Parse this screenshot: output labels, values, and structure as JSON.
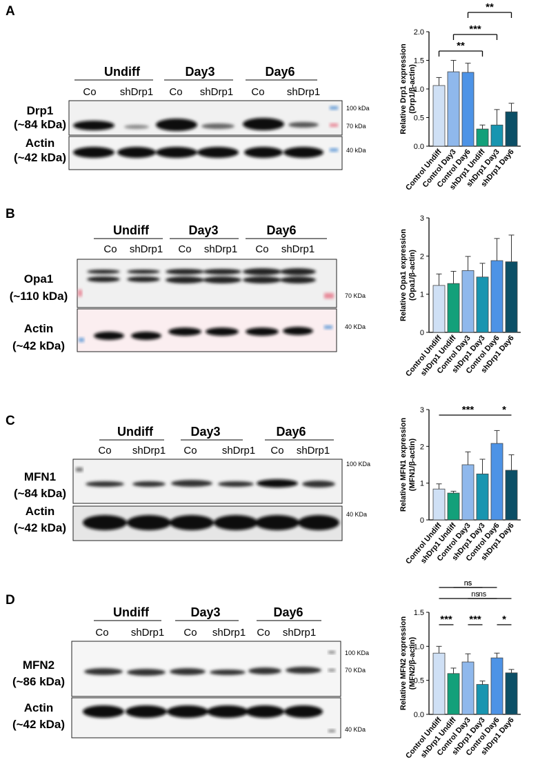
{
  "panels": [
    {
      "letter": "A",
      "groups": [
        "Undiff",
        "Day3",
        "Day6"
      ],
      "lanes": [
        "Co",
        "shDrp1",
        "Co",
        "shDrp1",
        "Co",
        "shDrp1"
      ],
      "blots": [
        {
          "name": "Drp1",
          "size": "(~84 kDa)"
        },
        {
          "name": "Actin",
          "size": "(~42 kDa)"
        }
      ],
      "markers": [
        "100 kDa",
        "70 kDa",
        "40 kDa"
      ],
      "marker_colors": [
        "#6fa3d9",
        "#e88a9a",
        "#6fa3d9"
      ]
    },
    {
      "letter": "B",
      "groups": [
        "Undiff",
        "Day3",
        "Day6"
      ],
      "lanes": [
        "Co",
        "shDrp1",
        "Co",
        "shDrp1",
        "Co",
        "shDrp1"
      ],
      "blots": [
        {
          "name": "Opa1",
          "size": "(~110 kDa)"
        },
        {
          "name": "Actin",
          "size": "(~42 kDa)"
        }
      ],
      "markers": [
        "70 KDa",
        "40 KDa"
      ],
      "marker_colors": [
        "#e88a9a",
        "#6fa3d9"
      ]
    },
    {
      "letter": "C",
      "groups": [
        "Undiff",
        "Day3",
        "Day6"
      ],
      "lanes": [
        "Co",
        "shDrp1",
        "Co",
        "shDrp1",
        "Co",
        "shDrp1"
      ],
      "blots": [
        {
          "name": "MFN1",
          "size": "(~84 kDa)"
        },
        {
          "name": "Actin",
          "size": "(~42 kDa)"
        }
      ],
      "markers": [
        "100 KDa",
        "40 KDa"
      ]
    },
    {
      "letter": "D",
      "groups": [
        "Undiff",
        "Day3",
        "Day6"
      ],
      "lanes": [
        "Co",
        "shDrp1",
        "Co",
        "shDrp1",
        "Co",
        "shDrp1"
      ],
      "blots": [
        {
          "name": "MFN2",
          "size": "(~86 kDa)"
        },
        {
          "name": "Actin",
          "size": "(~42 kDa)"
        }
      ],
      "markers": [
        "100 KDa",
        "70 KDa",
        "40 KDa"
      ]
    }
  ],
  "colors": {
    "control_undiff": "#cfe0f5",
    "control_day3": "#8fb8ec",
    "control_day6": "#4d93e6",
    "sh_undiff": "#13a07a",
    "sh_day3": "#1895b0",
    "sh_day6": "#0c4f66"
  },
  "chart_data": [
    {
      "type": "bar",
      "panel": "A",
      "ylabel": "Relative Drp1 expression (Drp1/β-actin)",
      "categories": [
        "Control Undiff",
        "Control Day3",
        "Control Day6",
        "shDrp1 Undiff",
        "shDrp1 Day3",
        "shDrp1 Day6"
      ],
      "values": [
        1.06,
        1.3,
        1.29,
        0.3,
        0.37,
        0.6
      ],
      "errors": [
        0.14,
        0.2,
        0.16,
        0.07,
        0.27,
        0.15
      ],
      "ylim": [
        0,
        2.0
      ],
      "yticks": [
        "0.0",
        "0.5",
        "1.0",
        "1.5",
        "2.0"
      ],
      "colors": [
        "#cfe0f5",
        "#8fb8ec",
        "#4d93e6",
        "#13a07a",
        "#1895b0",
        "#0c4f66"
      ],
      "significance": [
        {
          "from": 0,
          "to": 3,
          "label": "**"
        },
        {
          "from": 1,
          "to": 4,
          "label": "***"
        },
        {
          "from": 2,
          "to": 5,
          "label": "**"
        }
      ]
    },
    {
      "type": "bar",
      "panel": "B",
      "ylabel": "Relative Opa1 expression (Opa1/β-actin)",
      "categories": [
        "Control Undiff",
        "shDrp1 Undiff",
        "Control Day3",
        "shDrp1 Day3",
        "Control Day6",
        "shDrp1 Day6"
      ],
      "values": [
        1.23,
        1.28,
        1.62,
        1.45,
        1.88,
        1.85
      ],
      "errors": [
        0.3,
        0.32,
        0.37,
        0.36,
        0.58,
        0.7
      ],
      "ylim": [
        0,
        3
      ],
      "yticks": [
        "0",
        "1",
        "2",
        "3"
      ],
      "colors": [
        "#cfe0f5",
        "#13a07a",
        "#8fb8ec",
        "#1895b0",
        "#4d93e6",
        "#0c4f66"
      ],
      "significance": []
    },
    {
      "type": "bar",
      "panel": "C",
      "ylabel": "Relative MFN1 expression (MFN1/β-actin)",
      "categories": [
        "Control Undiff",
        "shDrp1 Undiff",
        "Control Day3",
        "shDrp1 Day3",
        "Control Day6",
        "shDrp1 Day6"
      ],
      "values": [
        0.84,
        0.73,
        1.5,
        1.25,
        2.08,
        1.35
      ],
      "errors": [
        0.14,
        0.05,
        0.35,
        0.4,
        0.35,
        0.42
      ],
      "ylim": [
        0,
        3
      ],
      "yticks": [
        "0",
        "1",
        "2",
        "3"
      ],
      "colors": [
        "#cfe0f5",
        "#13a07a",
        "#8fb8ec",
        "#1895b0",
        "#4d93e6",
        "#0c4f66"
      ],
      "significance": [
        {
          "from": 0,
          "to": 4,
          "label": "***"
        },
        {
          "from": 4,
          "to": 5,
          "label": "*"
        }
      ]
    },
    {
      "type": "bar",
      "panel": "D",
      "ylabel": "Relative MFN2 expression (MFN2/β-actin)",
      "categories": [
        "Control Undiff",
        "shDrp1 Undiff",
        "Control Day3",
        "shDrp1 Day3",
        "Control Day6",
        "shDrp1 Day6"
      ],
      "values": [
        0.9,
        0.6,
        0.77,
        0.44,
        0.83,
        0.61
      ],
      "errors": [
        0.1,
        0.08,
        0.12,
        0.05,
        0.07,
        0.05
      ],
      "ylim": [
        0,
        1.5
      ],
      "yticks": [
        "0.0",
        "0.5",
        "1.0",
        "1.5"
      ],
      "colors": [
        "#cfe0f5",
        "#13a07a",
        "#8fb8ec",
        "#1895b0",
        "#4d93e6",
        "#0c4f66"
      ],
      "significance": [
        {
          "from": 0,
          "to": 1,
          "label": "***"
        },
        {
          "from": 2,
          "to": 3,
          "label": "***"
        },
        {
          "from": 4,
          "to": 5,
          "label": "*"
        },
        {
          "from": 0,
          "to": 5,
          "label": "ns"
        },
        {
          "from": 1,
          "to": 3,
          "label": "ns"
        },
        {
          "from": 2,
          "to": 4,
          "label": "ns"
        },
        {
          "from": 0,
          "to": 4,
          "label": "ns"
        }
      ]
    }
  ]
}
